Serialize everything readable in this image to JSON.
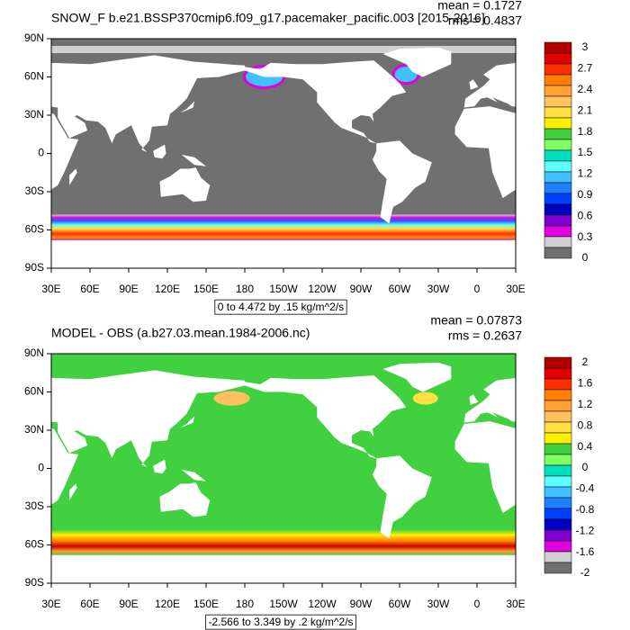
{
  "panels": [
    {
      "title": "SNOW_F b.e21.BSSP370cmip6.f09_g17.pacemaker_pacific.003 [2015-2016]",
      "mean": "mean = 0.1727",
      "rms": "rms = 0.4837",
      "lat_labels": [
        "90N",
        "60N",
        "30N",
        "0",
        "30S",
        "60S",
        "90S"
      ],
      "lon_labels": [
        "30E",
        "60E",
        "90E",
        "120E",
        "150E",
        "180",
        "150W",
        "120W",
        "90W",
        "60W",
        "30W",
        "0",
        "30E"
      ],
      "colorbar_labels": [
        3,
        2.7,
        2.4,
        2.1,
        1.8,
        1.5,
        1.2,
        0.9,
        0.6,
        0.3,
        0
      ],
      "range_note": "0 to 4.472 by .15 kg/m^2/s"
    },
    {
      "title": "MODEL - OBS (a.b27.03.mean.1984-2006.nc)",
      "mean": "mean = 0.07873",
      "rms": "rms = 0.2637",
      "lat_labels": [
        "90N",
        "60N",
        "30N",
        "0",
        "30S",
        "60S",
        "90S"
      ],
      "lon_labels": [
        "30E",
        "60E",
        "90E",
        "120E",
        "150E",
        "180",
        "150W",
        "120W",
        "90W",
        "60W",
        "30W",
        "0",
        "30E"
      ],
      "colorbar_labels": [
        2,
        1.6,
        1.2,
        0.8,
        0.4,
        0,
        -0.4,
        -0.8,
        -1.2,
        -1.6,
        -2
      ],
      "range_note": "-2.566 to 3.349 by .2 kg/m^2/s"
    }
  ]
}
